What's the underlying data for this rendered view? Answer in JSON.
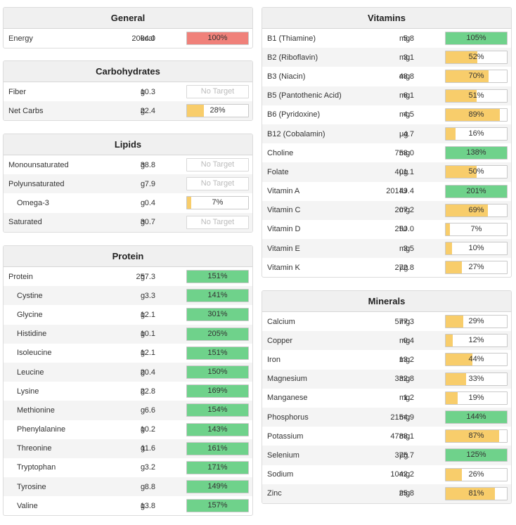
{
  "colors": {
    "green": "#6fd28b",
    "yellow": "#f8cd6b",
    "red": "#f0817a"
  },
  "panels": [
    {
      "id": "general",
      "title": "General",
      "rows": [
        {
          "name": "Energy",
          "amount": "2004.0",
          "unit": "kcal",
          "pct": 100,
          "label": "100%",
          "status": "red"
        }
      ]
    },
    {
      "id": "carbohydrates",
      "title": "Carbohydrates",
      "rows": [
        {
          "name": "Fiber",
          "amount": "10.3",
          "unit": "g",
          "pct": 0,
          "label": "No Target",
          "status": "none"
        },
        {
          "name": "Net Carbs",
          "amount": "22.4",
          "unit": "g",
          "pct": 28,
          "label": "28%",
          "status": "yellow"
        }
      ]
    },
    {
      "id": "lipids",
      "title": "Lipids",
      "rows": [
        {
          "name": "Monounsaturated",
          "amount": "38.8",
          "unit": "g",
          "pct": 0,
          "label": "No Target",
          "status": "none"
        },
        {
          "name": "Polyunsaturated",
          "amount": "7.9",
          "unit": "g",
          "pct": 0,
          "label": "No Target",
          "status": "none"
        },
        {
          "name": "Omega-3",
          "amount": "0.4",
          "unit": "g",
          "pct": 7,
          "label": "7%",
          "status": "yellow",
          "indent": true
        },
        {
          "name": "Saturated",
          "amount": "30.7",
          "unit": "g",
          "pct": 0,
          "label": "No Target",
          "status": "none"
        }
      ]
    },
    {
      "id": "protein",
      "title": "Protein",
      "rows": [
        {
          "name": "Protein",
          "amount": "257.3",
          "unit": "g",
          "pct": 100,
          "label": "151%",
          "status": "green"
        },
        {
          "name": "Cystine",
          "amount": "3.3",
          "unit": "g",
          "pct": 100,
          "label": "141%",
          "status": "green",
          "indent": true
        },
        {
          "name": "Glycine",
          "amount": "12.1",
          "unit": "g",
          "pct": 100,
          "label": "301%",
          "status": "green",
          "indent": true
        },
        {
          "name": "Histidine",
          "amount": "10.1",
          "unit": "g",
          "pct": 100,
          "label": "205%",
          "status": "green",
          "indent": true
        },
        {
          "name": "Isoleucine",
          "amount": "12.1",
          "unit": "g",
          "pct": 100,
          "label": "151%",
          "status": "green",
          "indent": true
        },
        {
          "name": "Leucine",
          "amount": "20.4",
          "unit": "g",
          "pct": 100,
          "label": "150%",
          "status": "green",
          "indent": true
        },
        {
          "name": "Lysine",
          "amount": "22.8",
          "unit": "g",
          "pct": 100,
          "label": "169%",
          "status": "green",
          "indent": true
        },
        {
          "name": "Methionine",
          "amount": "6.6",
          "unit": "g",
          "pct": 100,
          "label": "154%",
          "status": "green",
          "indent": true
        },
        {
          "name": "Phenylalanine",
          "amount": "10.2",
          "unit": "g",
          "pct": 100,
          "label": "143%",
          "status": "green",
          "indent": true
        },
        {
          "name": "Threonine",
          "amount": "11.6",
          "unit": "g",
          "pct": 100,
          "label": "161%",
          "status": "green",
          "indent": true
        },
        {
          "name": "Tryptophan",
          "amount": "3.2",
          "unit": "g",
          "pct": 100,
          "label": "171%",
          "status": "green",
          "indent": true
        },
        {
          "name": "Tyrosine",
          "amount": "8.8",
          "unit": "g",
          "pct": 100,
          "label": "149%",
          "status": "green",
          "indent": true
        },
        {
          "name": "Valine",
          "amount": "13.8",
          "unit": "g",
          "pct": 100,
          "label": "157%",
          "status": "green",
          "indent": true
        }
      ]
    },
    {
      "id": "vitamins",
      "title": "Vitamins",
      "rows": [
        {
          "name": "B1 (Thiamine)",
          "amount": "5.8",
          "unit": "mg",
          "pct": 100,
          "label": "105%",
          "status": "green"
        },
        {
          "name": "B2 (Riboflavin)",
          "amount": "3.1",
          "unit": "mg",
          "pct": 52,
          "label": "52%",
          "status": "yellow"
        },
        {
          "name": "B3 (Niacin)",
          "amount": "48.8",
          "unit": "mg",
          "pct": 70,
          "label": "70%",
          "status": "yellow"
        },
        {
          "name": "B5 (Pantothenic Acid)",
          "amount": "6.1",
          "unit": "mg",
          "pct": 51,
          "label": "51%",
          "status": "yellow"
        },
        {
          "name": "B6 (Pyridoxine)",
          "amount": "4.5",
          "unit": "mg",
          "pct": 89,
          "label": "89%",
          "status": "yellow"
        },
        {
          "name": "B12 (Cobalamin)",
          "amount": "4.7",
          "unit": "µg",
          "pct": 16,
          "label": "16%",
          "status": "yellow"
        },
        {
          "name": "Choline",
          "amount": "758.0",
          "unit": "mg",
          "pct": 100,
          "label": "138%",
          "status": "green"
        },
        {
          "name": "Folate",
          "amount": "401.1",
          "unit": "µg",
          "pct": 50,
          "label": "50%",
          "status": "yellow"
        },
        {
          "name": "Vitamin A",
          "amount": "20149.4",
          "unit": "IU",
          "pct": 100,
          "label": "201%",
          "status": "green"
        },
        {
          "name": "Vitamin C",
          "amount": "207.2",
          "unit": "mg",
          "pct": 69,
          "label": "69%",
          "status": "yellow"
        },
        {
          "name": "Vitamin D",
          "amount": "250.0",
          "unit": "IU",
          "pct": 7,
          "label": "7%",
          "status": "yellow"
        },
        {
          "name": "Vitamin E",
          "amount": "3.5",
          "unit": "mg",
          "pct": 10,
          "label": "10%",
          "status": "yellow"
        },
        {
          "name": "Vitamin K",
          "amount": "272.8",
          "unit": "µg",
          "pct": 27,
          "label": "27%",
          "status": "yellow"
        }
      ]
    },
    {
      "id": "minerals",
      "title": "Minerals",
      "rows": [
        {
          "name": "Calcium",
          "amount": "577.3",
          "unit": "mg",
          "pct": 29,
          "label": "29%",
          "status": "yellow"
        },
        {
          "name": "Copper",
          "amount": "0.4",
          "unit": "mg",
          "pct": 12,
          "label": "12%",
          "status": "yellow"
        },
        {
          "name": "Iron",
          "amount": "13.2",
          "unit": "mg",
          "pct": 44,
          "label": "44%",
          "status": "yellow"
        },
        {
          "name": "Magnesium",
          "amount": "332.8",
          "unit": "mg",
          "pct": 33,
          "label": "33%",
          "status": "yellow"
        },
        {
          "name": "Manganese",
          "amount": "1.2",
          "unit": "mg",
          "pct": 19,
          "label": "19%",
          "status": "yellow"
        },
        {
          "name": "Phosphorus",
          "amount": "2154.9",
          "unit": "mg",
          "pct": 100,
          "label": "144%",
          "status": "green"
        },
        {
          "name": "Potassium",
          "amount": "4788.1",
          "unit": "mg",
          "pct": 87,
          "label": "87%",
          "status": "yellow"
        },
        {
          "name": "Selenium",
          "amount": "375.7",
          "unit": "µg",
          "pct": 100,
          "label": "125%",
          "status": "green"
        },
        {
          "name": "Sodium",
          "amount": "1042.2",
          "unit": "mg",
          "pct": 26,
          "label": "26%",
          "status": "yellow"
        },
        {
          "name": "Zinc",
          "amount": "25.8",
          "unit": "mg",
          "pct": 81,
          "label": "81%",
          "status": "yellow"
        }
      ]
    }
  ]
}
